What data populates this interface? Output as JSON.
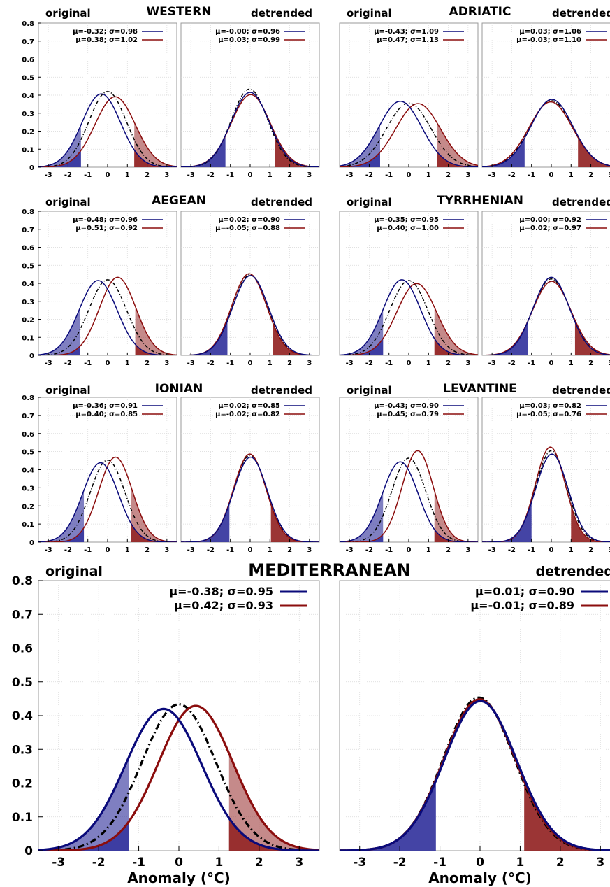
{
  "colors": {
    "blue": "#0a0a7a",
    "red": "#8b0d0d",
    "blue_fill": "#3a3aa0",
    "red_fill": "#962a2a",
    "black": "#000000",
    "grid": "#d8d8d8"
  },
  "labels": {
    "original": "original",
    "detrended": "detrended",
    "xlabel": "Anomaly (°C)"
  },
  "chart_data": [
    {
      "type": "line",
      "region": "WESTERN",
      "ylim": [
        0,
        0.8
      ],
      "xlim": [
        -3.5,
        3.5
      ],
      "yticks": [
        "0",
        "0.1",
        "0.2",
        "0.3",
        "0.4",
        "0.5",
        "0.6",
        "0.7",
        "0.8"
      ],
      "xticks": [
        "-3",
        "-2",
        "-1",
        "0",
        "1",
        "2",
        "3"
      ],
      "original": {
        "series": [
          {
            "name": "μ=-0.32; σ=0.98",
            "mu": -0.32,
            "sigma": 0.98,
            "color": "blue"
          },
          {
            "name": "μ=0.38; σ=1.02",
            "mu": 0.38,
            "sigma": 1.02,
            "color": "red"
          },
          {
            "mu": 0.0,
            "sigma": 0.95,
            "color": "black",
            "dash": true
          }
        ],
        "thresholds": [
          -1.35,
          1.35
        ]
      },
      "detrended": {
        "series": [
          {
            "name": "μ=-0.00; σ=0.96",
            "mu": 0.0,
            "sigma": 0.96,
            "color": "blue"
          },
          {
            "name": "μ=0.03; σ=0.99",
            "mu": 0.03,
            "sigma": 0.99,
            "color": "red"
          },
          {
            "mu": -0.03,
            "sigma": 0.92,
            "color": "black",
            "dash": true
          }
        ],
        "thresholds": [
          -1.25,
          1.25
        ]
      }
    },
    {
      "type": "line",
      "region": "ADRIATIC",
      "ylim": [
        0,
        0.8
      ],
      "xlim": [
        -3.5,
        3.5
      ],
      "yticks": [],
      "xticks": [
        "-3",
        "-2",
        "-1",
        "0",
        "1",
        "2",
        "3"
      ],
      "original": {
        "series": [
          {
            "name": "μ=-0.43; σ=1.09",
            "mu": -0.43,
            "sigma": 1.09,
            "color": "blue"
          },
          {
            "name": "μ=0.47; σ=1.13",
            "mu": 0.47,
            "sigma": 1.13,
            "color": "red"
          },
          {
            "mu": 0.0,
            "sigma": 1.12,
            "color": "black",
            "dash": true
          }
        ],
        "thresholds": [
          -1.45,
          1.45
        ]
      },
      "detrended": {
        "series": [
          {
            "name": "μ=0.03; σ=1.06",
            "mu": 0.03,
            "sigma": 1.06,
            "color": "blue"
          },
          {
            "name": "μ=-0.03; σ=1.10",
            "mu": -0.03,
            "sigma": 1.1,
            "color": "red"
          },
          {
            "mu": 0.0,
            "sigma": 1.08,
            "color": "black",
            "dash": true
          }
        ],
        "thresholds": [
          -1.35,
          1.35
        ]
      }
    },
    {
      "type": "line",
      "region": "AEGEAN",
      "ylim": [
        0,
        0.8
      ],
      "xlim": [
        -3.5,
        3.5
      ],
      "yticks": [
        "0",
        "0.1",
        "0.2",
        "0.3",
        "0.4",
        "0.5",
        "0.6",
        "0.7",
        "0.8"
      ],
      "xticks": [
        "-3",
        "-2",
        "-1",
        "0",
        "1",
        "2",
        "3"
      ],
      "original": {
        "series": [
          {
            "name": "μ=-0.48; σ=0.96",
            "mu": -0.48,
            "sigma": 0.96,
            "color": "blue"
          },
          {
            "name": "μ=0.51; σ=0.92",
            "mu": 0.51,
            "sigma": 0.92,
            "color": "red"
          },
          {
            "mu": 0.0,
            "sigma": 0.95,
            "color": "black",
            "dash": true
          }
        ],
        "thresholds": [
          -1.4,
          1.4
        ]
      },
      "detrended": {
        "series": [
          {
            "name": "μ=0.02; σ=0.90",
            "mu": 0.02,
            "sigma": 0.9,
            "color": "blue"
          },
          {
            "name": "μ=-0.05; σ=0.88",
            "mu": -0.05,
            "sigma": 0.88,
            "color": "red"
          },
          {
            "mu": 0.0,
            "sigma": 0.89,
            "color": "black",
            "dash": true
          }
        ],
        "thresholds": [
          -1.15,
          1.15
        ]
      }
    },
    {
      "type": "line",
      "region": "TYRRHENIAN",
      "ylim": [
        0,
        0.8
      ],
      "xlim": [
        -3.5,
        3.5
      ],
      "yticks": [],
      "xticks": [
        "-3",
        "-2",
        "-1",
        "0",
        "1",
        "2",
        "3"
      ],
      "original": {
        "series": [
          {
            "name": "μ=-0.35; σ=0.95",
            "mu": -0.35,
            "sigma": 0.95,
            "color": "blue"
          },
          {
            "name": "μ=0.40; σ=1.00",
            "mu": 0.4,
            "sigma": 1.0,
            "color": "red"
          },
          {
            "mu": 0.0,
            "sigma": 0.96,
            "color": "black",
            "dash": true
          }
        ],
        "thresholds": [
          -1.3,
          1.3
        ]
      },
      "detrended": {
        "series": [
          {
            "name": "μ=0.00; σ=0.92",
            "mu": 0.0,
            "sigma": 0.92,
            "color": "blue"
          },
          {
            "name": "μ=0.02; σ=0.97",
            "mu": 0.02,
            "sigma": 0.97,
            "color": "red"
          },
          {
            "mu": 0.0,
            "sigma": 0.94,
            "color": "black",
            "dash": true
          }
        ],
        "thresholds": [
          -1.2,
          1.2
        ]
      }
    },
    {
      "type": "line",
      "region": "IONIAN",
      "ylim": [
        0,
        0.8
      ],
      "xlim": [
        -3.5,
        3.5
      ],
      "yticks": [
        "0",
        "0.1",
        "0.2",
        "0.3",
        "0.4",
        "0.5",
        "0.6",
        "0.7",
        "0.8"
      ],
      "xticks": [
        "-3",
        "-2",
        "-1",
        "0",
        "1",
        "2",
        "3"
      ],
      "original": {
        "series": [
          {
            "name": "μ=-0.36; σ=0.91",
            "mu": -0.36,
            "sigma": 0.91,
            "color": "blue"
          },
          {
            "name": "μ=0.40; σ=0.85",
            "mu": 0.4,
            "sigma": 0.85,
            "color": "red"
          },
          {
            "mu": 0.0,
            "sigma": 0.88,
            "color": "black",
            "dash": true
          }
        ],
        "thresholds": [
          -1.2,
          1.2
        ]
      },
      "detrended": {
        "series": [
          {
            "name": "μ=0.02; σ=0.85",
            "mu": 0.02,
            "sigma": 0.85,
            "color": "blue"
          },
          {
            "name": "μ=-0.02; σ=0.82",
            "mu": -0.02,
            "sigma": 0.82,
            "color": "red"
          },
          {
            "mu": 0.0,
            "sigma": 0.83,
            "color": "black",
            "dash": true
          }
        ],
        "thresholds": [
          -1.05,
          1.05
        ]
      }
    },
    {
      "type": "line",
      "region": "LEVANTINE",
      "ylim": [
        0,
        0.8
      ],
      "xlim": [
        -3.5,
        3.5
      ],
      "yticks": [],
      "xticks": [
        "-3",
        "-2",
        "-1",
        "0",
        "1",
        "2",
        "3"
      ],
      "original": {
        "series": [
          {
            "name": "μ=-0.43; σ=0.90",
            "mu": -0.43,
            "sigma": 0.9,
            "color": "blue"
          },
          {
            "name": "μ=0.45; σ=0.79",
            "mu": 0.45,
            "sigma": 0.79,
            "color": "red"
          },
          {
            "mu": 0.0,
            "sigma": 0.86,
            "color": "black",
            "dash": true
          }
        ],
        "thresholds": [
          -1.3,
          1.3
        ]
      },
      "detrended": {
        "series": [
          {
            "name": "μ=0.03; σ=0.82",
            "mu": 0.03,
            "sigma": 0.82,
            "color": "blue"
          },
          {
            "name": "μ=-0.05; σ=0.76",
            "mu": -0.05,
            "sigma": 0.76,
            "color": "red"
          },
          {
            "mu": 0.0,
            "sigma": 0.79,
            "color": "black",
            "dash": true
          }
        ],
        "thresholds": [
          -1.0,
          1.0
        ]
      }
    },
    {
      "type": "line",
      "region": "MEDITERRANEAN",
      "ylim": [
        0,
        0.8
      ],
      "xlim": [
        -3.5,
        3.5
      ],
      "yticks": [
        "0",
        "0.1",
        "0.2",
        "0.3",
        "0.4",
        "0.5",
        "0.6",
        "0.7",
        "0.8"
      ],
      "xticks": [
        "-3",
        "-2",
        "-1",
        "0",
        "1",
        "2",
        "3"
      ],
      "xlabel": "Anomaly (°C)",
      "original": {
        "series": [
          {
            "name": "μ=-0.38; σ=0.95",
            "mu": -0.38,
            "sigma": 0.95,
            "color": "blue"
          },
          {
            "name": "μ=0.42; σ=0.93",
            "mu": 0.42,
            "sigma": 0.93,
            "color": "red"
          },
          {
            "mu": 0.0,
            "sigma": 0.92,
            "color": "black",
            "dash": true
          }
        ],
        "thresholds": [
          -1.25,
          1.25
        ]
      },
      "detrended": {
        "series": [
          {
            "name": "μ=0.01; σ=0.90",
            "mu": 0.01,
            "sigma": 0.9,
            "color": "blue"
          },
          {
            "name": "μ=-0.01; σ=0.89",
            "mu": -0.01,
            "sigma": 0.89,
            "color": "red"
          },
          {
            "mu": -0.03,
            "sigma": 0.88,
            "color": "black",
            "dash": true
          }
        ],
        "thresholds": [
          -1.1,
          1.1
        ]
      }
    }
  ]
}
